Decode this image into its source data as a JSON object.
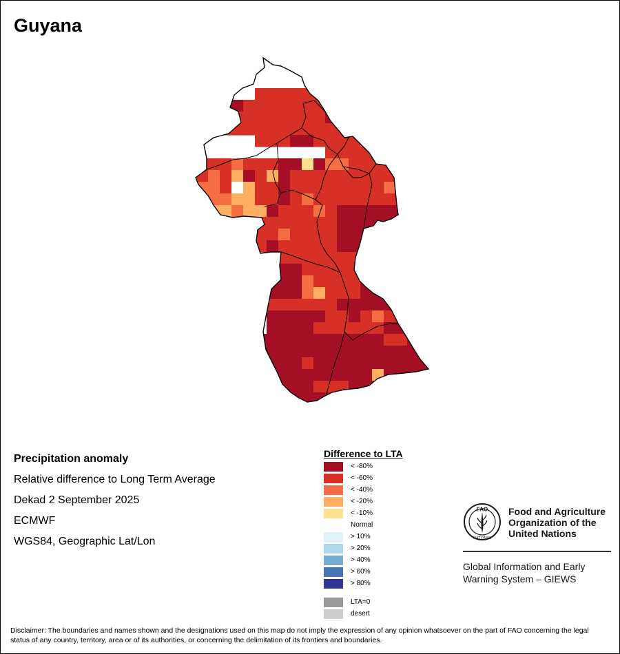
{
  "title": "Guyana",
  "info": {
    "heading": "Precipitation anomaly",
    "subheading": "Relative difference to Long Term Average",
    "period": "Dekad 2 September 2025",
    "source": "ECMWF",
    "projection": "WGS84, Geographic Lat/Lon"
  },
  "legend": {
    "title": "Difference to LTA",
    "items": [
      {
        "label": "< -80%",
        "color": "#a50f26"
      },
      {
        "label": "< -60%",
        "color": "#d73027"
      },
      {
        "label": "< -40%",
        "color": "#f46d43"
      },
      {
        "label": "< -20%",
        "color": "#fdae61"
      },
      {
        "label": "< -10%",
        "color": "#fee090"
      },
      {
        "label": "Normal",
        "color": "#ffffff"
      },
      {
        "label": "> 10%",
        "color": "#e0f3f8"
      },
      {
        "label": "> 20%",
        "color": "#abd9e9"
      },
      {
        "label": "> 40%",
        "color": "#74add1"
      },
      {
        "label": "> 60%",
        "color": "#4575b4"
      },
      {
        "label": "> 80%",
        "color": "#313695"
      }
    ],
    "extras": [
      {
        "label": "LTA=0",
        "color": "#999999"
      },
      {
        "label": "desert",
        "color": "#cccccc"
      }
    ]
  },
  "organization": {
    "name_lines": [
      "Food and Agriculture",
      "Organization of the",
      "United Nations"
    ],
    "emblem_letters": "FAO",
    "emblem_motto": "FIAT PANIS",
    "system_lines": [
      "Global Information and Early",
      "Warning System – GIEWS"
    ]
  },
  "disclaimer": "Disclaimer: The boundaries and names shown and the designations used on this map do not imply the expression of any opinion whatsoever on the part of FAO concerning the legal status of any country, territory, area or of its authorities, or concerning the delimitation of its frontiers and boundaries.",
  "map": {
    "category_colors": {
      "A": "#a50f26",
      "B": "#d73027",
      "C": "#f46d43",
      "D": "#fdae61",
      "E": "#fee090",
      "N": "#ffffff"
    },
    "anomaly_grid": [
      "......................",
      "......................",
      "......................",
      "......................",
      ".....BBBBBBB..........",
      "..AABBBBBBBBC.........",
      "..ABBBBBBBBAAB........",
      "..BBBBBBBBBBBBB.......",
      ".....BBBAABBBBCB......",
      "...........BBBBBBN.BB.",
      "BBBCBBBAAEACCBBBBBCB..",
      "BCBDABDABBBBBBBBBCBCB.",
      "CCBNDBBABBBBBBBBCBCBB.",
      "DCCDDBBABCBBBBBBBBBBBA",
      "EDDCDDABBBCBAAAAAAAABB",
      "DCCCCBBBBBBBAAAAAAAAAB",
      "CCCCBBBCBBBBAAAACCAAAB",
      "ECCCBBABBBBBAAAAAAAAAB",
      "......BBBBBBBBBAAAA...",
      "....AAAAABBBBBBAAAA...",
      "....AAAAACBBBBAAAA....",
      "....AAAAACDBBBAAAA....",
      "......BBBBBBAAAAA.....",
      "......AAAAABBABCBB....",
      "......AAAABBBBBBAA....",
      ".....AAAAAAAAAAABBAA..",
      ".....AAAAAAAAAAAAAAAB.",
      ".....AAAABAAAAAAAAAAAA",
      ".....AAAAAAAAAADAAAAAA",
      ".....AAAAABBBAAADABBAA",
      ".....AAAAAAAAAACAAAAAA",
      ".....AAAAAAAAAABCAAAAA",
      ".....AAAAAAAAAAAAAAAAA",
      ".....AAAAAAAAAAAAAAAAA",
      ".....AAAAAAAAAAAAAAAAA",
      "......AAAAAAAAAAAAAAAA",
      "......AAAAAAAAAAAAAAA.",
      ".......AAAAAAAAAAAAA..",
      "........ABBBBBBAAA....",
      ".........BBB.........."
    ]
  }
}
